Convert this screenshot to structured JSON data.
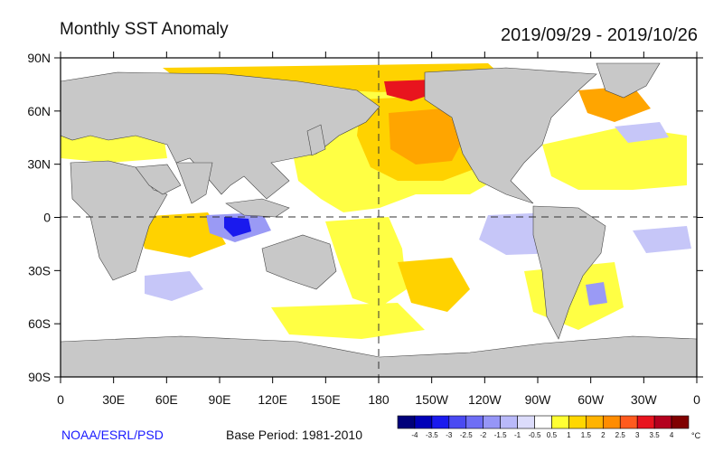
{
  "header": {
    "title": "Monthly SST Anomaly",
    "period": "2019/09/29 - 2019/10/26"
  },
  "map": {
    "lat_ticks": [
      "90N",
      "60N",
      "30N",
      "0",
      "30S",
      "60S",
      "90S"
    ],
    "lon_ticks": [
      "0",
      "30E",
      "60E",
      "90E",
      "120E",
      "150E",
      "180",
      "150W",
      "120W",
      "90W",
      "60W",
      "30W",
      "0"
    ],
    "land_color": "#c8c8c8",
    "ocean_color": "#ffffff",
    "ice_color": "#c8c8c8"
  },
  "legend": {
    "labels": [
      "-4",
      "-3.5",
      "-3",
      "-2.5",
      "-2",
      "-1.5",
      "-1",
      "-0.5",
      "0.5",
      "1",
      "1.5",
      "2",
      "2.5",
      "3",
      "3.5",
      "4"
    ],
    "colors": [
      "#00007a",
      "#0000b8",
      "#1a1aee",
      "#4a4af2",
      "#6e6ef5",
      "#9696f7",
      "#b9b9f9",
      "#dcdcfb",
      "#ffffff",
      "#ffff33",
      "#ffd700",
      "#ffb300",
      "#ff8c00",
      "#ff5a1e",
      "#e8141e",
      "#b4001e",
      "#800000"
    ],
    "unit": "°C"
  },
  "footer": {
    "credit": "NOAA/ESRL/PSD",
    "base_period": "Base Period: 1981-2010"
  }
}
